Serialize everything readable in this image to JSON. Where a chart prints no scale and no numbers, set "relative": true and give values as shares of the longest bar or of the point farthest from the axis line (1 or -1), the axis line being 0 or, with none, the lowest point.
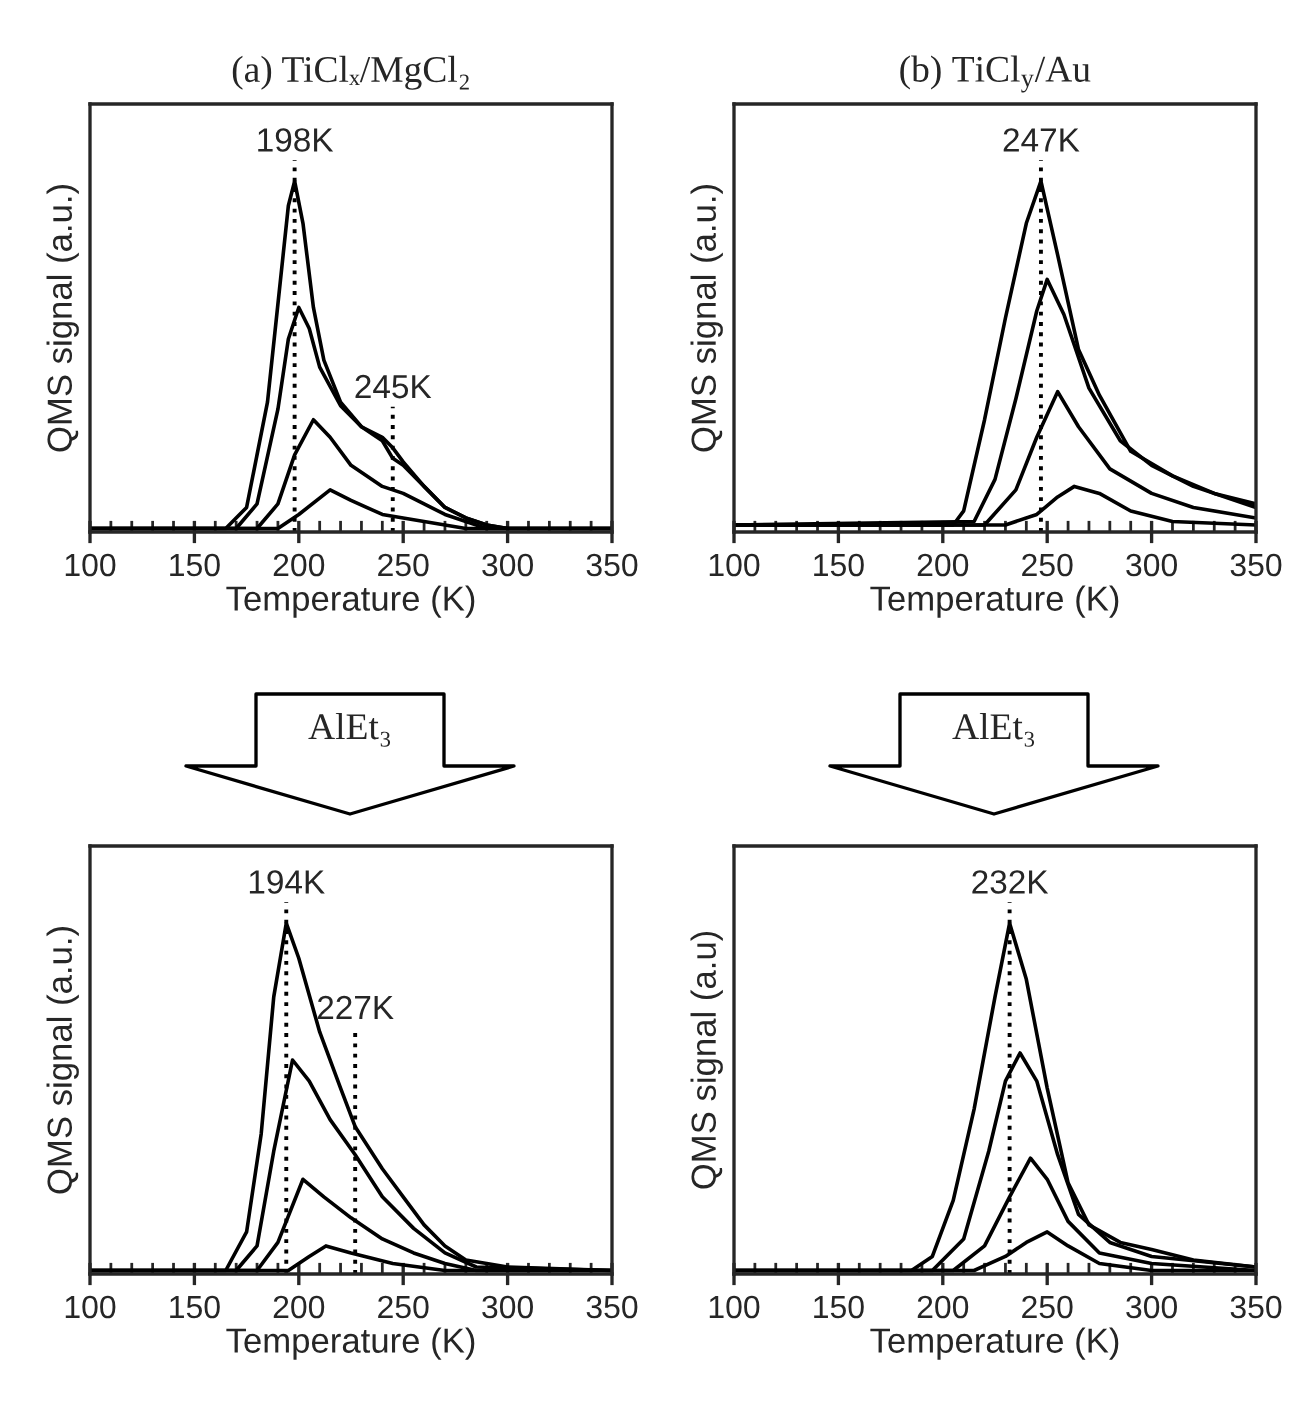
{
  "chart_data": [
    {
      "type": "line",
      "title": "(a) TiClₓ/MgCl₂",
      "xlabel": "Temperature (K)",
      "ylabel": "QMS signal (a.u.)",
      "relative": true,
      "xlim": [
        100,
        350
      ],
      "xticks": [
        100,
        150,
        200,
        250,
        300,
        350
      ],
      "series": [
        {
          "color": "#000000",
          "x": [
            100,
            165,
            175,
            185,
            190,
            195,
            198,
            202,
            207,
            212,
            220,
            230,
            240,
            245,
            250,
            260,
            270,
            280,
            290,
            300,
            350
          ],
          "values": [
            0.01,
            0.01,
            0.07,
            0.37,
            0.65,
            0.93,
            1.0,
            0.88,
            0.64,
            0.49,
            0.37,
            0.3,
            0.26,
            0.21,
            0.19,
            0.13,
            0.07,
            0.04,
            0.02,
            0.01,
            0.01
          ]
        },
        {
          "color": "#000000",
          "x": [
            100,
            170,
            180,
            190,
            195,
            200,
            205,
            210,
            220,
            230,
            240,
            245,
            250,
            260,
            270,
            280,
            290,
            300,
            350
          ],
          "values": [
            0.01,
            0.01,
            0.08,
            0.35,
            0.55,
            0.64,
            0.58,
            0.47,
            0.36,
            0.3,
            0.27,
            0.24,
            0.2,
            0.13,
            0.07,
            0.04,
            0.02,
            0.01,
            0.01
          ]
        },
        {
          "color": "#000000",
          "x": [
            100,
            180,
            190,
            198,
            207,
            215,
            225,
            240,
            250,
            260,
            270,
            280,
            290,
            350
          ],
          "values": [
            0.01,
            0.01,
            0.08,
            0.22,
            0.32,
            0.27,
            0.19,
            0.13,
            0.11,
            0.08,
            0.05,
            0.03,
            0.01,
            0.01
          ]
        },
        {
          "color": "#000000",
          "x": [
            100,
            190,
            200,
            215,
            225,
            240,
            260,
            280,
            350
          ],
          "values": [
            0.01,
            0.01,
            0.05,
            0.12,
            0.09,
            0.05,
            0.03,
            0.01,
            0.01
          ]
        }
      ],
      "ref_lines": [
        {
          "axis": "x",
          "value": 198,
          "label": "198K",
          "line_style": "dotted",
          "color": "#000000"
        },
        {
          "axis": "x",
          "value": 245,
          "label": "245K",
          "line_style": "dotted",
          "color": "#000000"
        }
      ]
    },
    {
      "type": "line",
      "title": "(b) TiCl$_{y}$/Au",
      "xlabel": "Temperature (K)",
      "ylabel": "QMS signal (a.u.)",
      "relative": true,
      "xlim": [
        100,
        350
      ],
      "xticks": [
        100,
        150,
        200,
        250,
        300,
        350
      ],
      "series": [
        {
          "color": "#000000",
          "x": [
            100,
            205,
            210,
            220,
            230,
            240,
            247,
            255,
            265,
            275,
            290,
            310,
            330,
            350
          ],
          "values": [
            0.02,
            0.02,
            0.06,
            0.32,
            0.61,
            0.88,
            1.0,
            0.79,
            0.52,
            0.39,
            0.23,
            0.16,
            0.11,
            0.08
          ]
        },
        {
          "color": "#000000",
          "x": [
            100,
            215,
            225,
            235,
            245,
            250,
            258,
            270,
            285,
            300,
            320,
            350
          ],
          "values": [
            0.02,
            0.03,
            0.15,
            0.38,
            0.63,
            0.72,
            0.62,
            0.41,
            0.26,
            0.19,
            0.13,
            0.07
          ]
        },
        {
          "color": "#000000",
          "x": [
            100,
            220,
            235,
            245,
            255,
            265,
            280,
            300,
            320,
            350
          ],
          "values": [
            0.02,
            0.02,
            0.12,
            0.27,
            0.4,
            0.3,
            0.18,
            0.11,
            0.07,
            0.04
          ]
        },
        {
          "color": "#000000",
          "x": [
            100,
            230,
            245,
            255,
            263,
            275,
            290,
            310,
            350
          ],
          "values": [
            0.02,
            0.02,
            0.05,
            0.1,
            0.13,
            0.11,
            0.06,
            0.03,
            0.02
          ]
        }
      ],
      "ref_lines": [
        {
          "axis": "x",
          "value": 247,
          "label": "247K",
          "line_style": "dotted",
          "color": "#000000"
        }
      ]
    },
    {
      "type": "line",
      "xlabel": "Temperature (K)",
      "ylabel": "QMS signal (a.u.)",
      "relative": true,
      "xlim": [
        100,
        350
      ],
      "xticks": [
        100,
        150,
        200,
        250,
        300,
        350
      ],
      "annotations": [
        "AlEt₃"
      ],
      "series": [
        {
          "color": "#000000",
          "x": [
            100,
            165,
            175,
            182,
            188,
            194,
            200,
            210,
            220,
            227,
            240,
            250,
            260,
            270,
            280,
            300,
            350
          ],
          "values": [
            0.01,
            0.01,
            0.12,
            0.4,
            0.79,
            1.0,
            0.9,
            0.69,
            0.53,
            0.42,
            0.3,
            0.22,
            0.14,
            0.08,
            0.04,
            0.02,
            0.01
          ]
        },
        {
          "color": "#000000",
          "x": [
            100,
            170,
            180,
            188,
            197,
            205,
            215,
            227,
            240,
            255,
            270,
            285,
            350
          ],
          "values": [
            0.01,
            0.01,
            0.08,
            0.35,
            0.61,
            0.55,
            0.44,
            0.34,
            0.22,
            0.13,
            0.06,
            0.02,
            0.01
          ]
        },
        {
          "color": "#000000",
          "x": [
            100,
            180,
            190,
            202,
            212,
            225,
            240,
            255,
            270,
            285,
            350
          ],
          "values": [
            0.01,
            0.01,
            0.09,
            0.27,
            0.22,
            0.16,
            0.1,
            0.06,
            0.03,
            0.01,
            0.01
          ]
        },
        {
          "color": "#000000",
          "x": [
            100,
            195,
            205,
            213,
            225,
            245,
            270,
            350
          ],
          "values": [
            0.01,
            0.01,
            0.05,
            0.08,
            0.06,
            0.03,
            0.01,
            0.01
          ]
        }
      ],
      "ref_lines": [
        {
          "axis": "x",
          "value": 194,
          "label": "194K",
          "line_style": "dotted",
          "color": "#000000"
        },
        {
          "axis": "x",
          "value": 227,
          "label": "227K",
          "line_style": "dotted",
          "color": "#000000"
        }
      ]
    },
    {
      "type": "line",
      "xlabel": "Temperature (K)",
      "ylabel": "QMS signal (a.u)",
      "relative": true,
      "xlim": [
        100,
        350
      ],
      "xticks": [
        100,
        150,
        200,
        250,
        300,
        350
      ],
      "annotations": [
        "AlEt₃"
      ],
      "series": [
        {
          "color": "#000000",
          "x": [
            100,
            185,
            195,
            205,
            215,
            225,
            232,
            240,
            250,
            260,
            270,
            285,
            300,
            320,
            350
          ],
          "values": [
            0.01,
            0.01,
            0.05,
            0.21,
            0.47,
            0.79,
            1.0,
            0.84,
            0.53,
            0.26,
            0.14,
            0.09,
            0.07,
            0.04,
            0.02
          ]
        },
        {
          "color": "#000000",
          "x": [
            100,
            195,
            210,
            222,
            230,
            237,
            245,
            255,
            265,
            280,
            300,
            350
          ],
          "values": [
            0.01,
            0.01,
            0.1,
            0.35,
            0.55,
            0.63,
            0.55,
            0.34,
            0.17,
            0.09,
            0.05,
            0.02
          ]
        },
        {
          "color": "#000000",
          "x": [
            100,
            205,
            220,
            232,
            242,
            250,
            260,
            275,
            300,
            350
          ],
          "values": [
            0.01,
            0.01,
            0.08,
            0.22,
            0.33,
            0.27,
            0.15,
            0.06,
            0.03,
            0.01
          ]
        },
        {
          "color": "#000000",
          "x": [
            100,
            215,
            230,
            240,
            250,
            260,
            275,
            300,
            350
          ],
          "values": [
            0.01,
            0.01,
            0.05,
            0.09,
            0.12,
            0.08,
            0.03,
            0.01,
            0.01
          ]
        }
      ],
      "ref_lines": [
        {
          "axis": "x",
          "value": 232,
          "label": "232K",
          "line_style": "dotted",
          "color": "#000000"
        }
      ]
    }
  ]
}
